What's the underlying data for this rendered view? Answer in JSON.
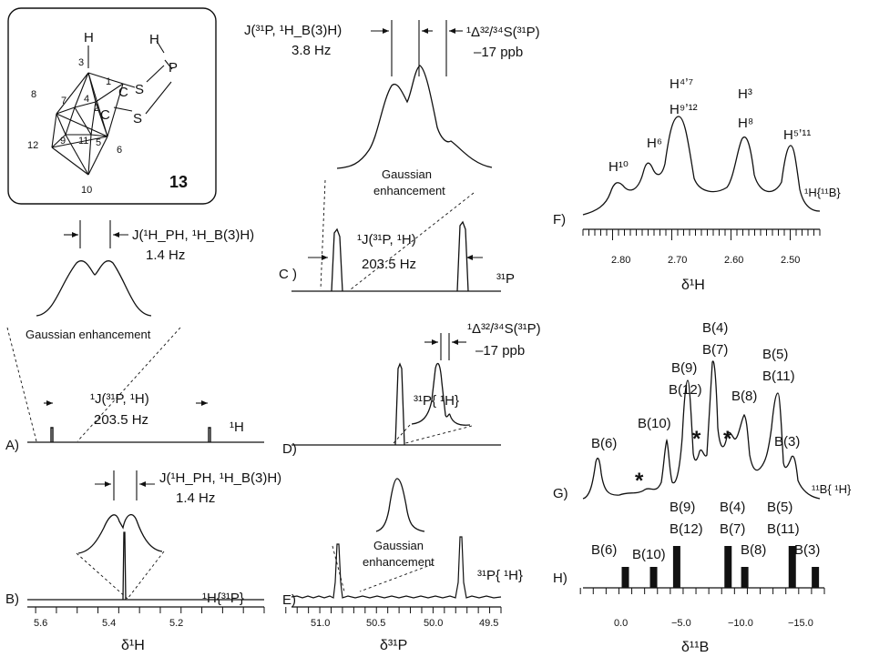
{
  "compound": {
    "number": "13",
    "atoms": {
      "top_h": "H",
      "p_h": "H",
      "p": "P",
      "c1": "C",
      "c2": "C",
      "s1": "S",
      "s2": "S"
    },
    "vertex_numbers": [
      "1",
      "2",
      "3",
      "4",
      "5",
      "6",
      "7",
      "8",
      "9",
      "10",
      "11",
      "12"
    ]
  },
  "panel_a": {
    "letter": "A)",
    "nucleus": "¹H",
    "coupling_main_line1": "¹J(³¹P, ¹H)",
    "coupling_main_line2": "203.5 Hz",
    "coupling_inset_line1": "J(¹H_PH, ¹H_B(3)H)",
    "coupling_inset_line2": "1.4 Hz",
    "enhancement": "Gaussian   enhancement"
  },
  "panel_b": {
    "letter": "B)",
    "nucleus": "¹H{³¹P}",
    "coupling_line1": "J(¹H_PH, ¹H_B(3)H)",
    "coupling_line2": "1.4 Hz",
    "axis_label": "δ¹H",
    "ticks": [
      "5.6",
      "5.4",
      "5.2"
    ]
  },
  "panel_c": {
    "letter": "C )",
    "nucleus": "³¹P",
    "coupling_line1": "¹J(³¹P, ¹H)",
    "coupling_line2": "203.5 Hz",
    "inset_coupling_line1": "J(³¹P, ¹H_B(3)H)",
    "inset_coupling_line2": "3.8 Hz",
    "isotope_line1": "¹Δ³²/³⁴S(³¹P)",
    "isotope_line2": "–17 ppb",
    "enhancement_line1": "Gaussian",
    "enhancement_line2": "enhancement"
  },
  "panel_d": {
    "letter": "D)",
    "nucleus": "³¹P{ ¹H}",
    "isotope_line1": "¹Δ³²/³⁴S(³¹P)",
    "isotope_line2": "–17 ppb"
  },
  "panel_e": {
    "letter": "E)",
    "nucleus": "³¹P{ ¹H}",
    "enhancement_line1": "Gaussian",
    "enhancement_line2": "enhancement",
    "axis_label": "δ³¹P",
    "ticks": [
      "51.0",
      "50.5",
      "50.0",
      "49.5"
    ]
  },
  "panel_f": {
    "letter": "F)",
    "nucleus": "¹H{¹¹B}",
    "axis_label": "δ¹H",
    "ticks": [
      "2.80",
      "2.70",
      "2.60",
      "2.50"
    ],
    "peak_labels": {
      "h10": "H¹⁰",
      "h6": "H⁶",
      "h47": "H⁴ʼ⁷",
      "h912": "H⁹ʼ¹²",
      "h3": "H³",
      "h8": "H⁸",
      "h511": "H⁵ʼ¹¹"
    }
  },
  "panel_g": {
    "letter": "G)",
    "nucleus": "¹¹B{ ¹H}",
    "impurity_mark": "*",
    "peak_labels": {
      "b6": "B(6)",
      "b10": "B(10)",
      "b9": "B(9)",
      "b12": "B(12)",
      "b4": "B(4)",
      "b7": "B(7)",
      "b8": "B(8)",
      "b5": "B(5)",
      "b11": "B(11)",
      "b3": "B(3)"
    }
  },
  "panel_h": {
    "letter": "H)",
    "axis_label": "δ¹¹B",
    "ticks": [
      "0.0",
      "−5.0",
      "−10.0",
      "−15.0"
    ],
    "bar_labels": {
      "b6": "B(6)",
      "b10": "B(10)",
      "b9": "B(9)",
      "b12": "B(12)",
      "b4": "B(4)",
      "b7": "B(7)",
      "b8": "B(8)",
      "b5": "B(5)",
      "b11": "B(11)",
      "b3": "B(3)"
    }
  },
  "chart_data": [
    {
      "type": "line",
      "panel": "B",
      "xlabel": "δ¹H",
      "xlim": [
        5.65,
        5.08
      ],
      "xticks": [
        5.6,
        5.4,
        5.2
      ],
      "peaks": [
        {
          "x": 5.365,
          "height": 1.0
        }
      ]
    },
    {
      "type": "line",
      "panel": "E",
      "xlabel": "δ³¹P",
      "xlim": [
        51.2,
        49.35
      ],
      "xticks": [
        51.0,
        50.5,
        50.0,
        49.5
      ],
      "peaks": [
        {
          "x": 50.82,
          "height": 1.0
        },
        {
          "x": 49.77,
          "height": 1.0
        }
      ]
    },
    {
      "type": "line",
      "panel": "F",
      "xlabel": "δ¹H",
      "xlim": [
        2.85,
        2.45
      ],
      "xticks": [
        2.8,
        2.7,
        2.6,
        2.5
      ],
      "peaks": [
        {
          "label": "H10",
          "x": 2.785,
          "height": 0.4
        },
        {
          "label": "H6",
          "x": 2.705,
          "height": 0.5
        },
        {
          "label": "H4,7 / H9,12",
          "x": 2.665,
          "height": 0.95
        },
        {
          "label": "H3 / H8",
          "x": 2.545,
          "height": 0.83
        },
        {
          "label": "H5,11",
          "x": 2.475,
          "height": 0.7
        }
      ]
    },
    {
      "type": "bar",
      "panel": "H",
      "xlabel": "δ¹¹B",
      "xlim": [
        2.2,
        -16.6
      ],
      "xticks": [
        0.0,
        -5.0,
        -10.0,
        -15.0
      ],
      "categories": [
        "B(6)",
        "B(10)",
        "B(9)/B(12)",
        "B(4)/B(7)",
        "B(8)",
        "B(5)/B(11)",
        "B(3)"
      ],
      "x": [
        -1.1,
        -3.3,
        -5.1,
        -9.1,
        -10.4,
        -14.1,
        -15.9
      ],
      "values": [
        1,
        1,
        2,
        2,
        1,
        2,
        1
      ]
    }
  ]
}
